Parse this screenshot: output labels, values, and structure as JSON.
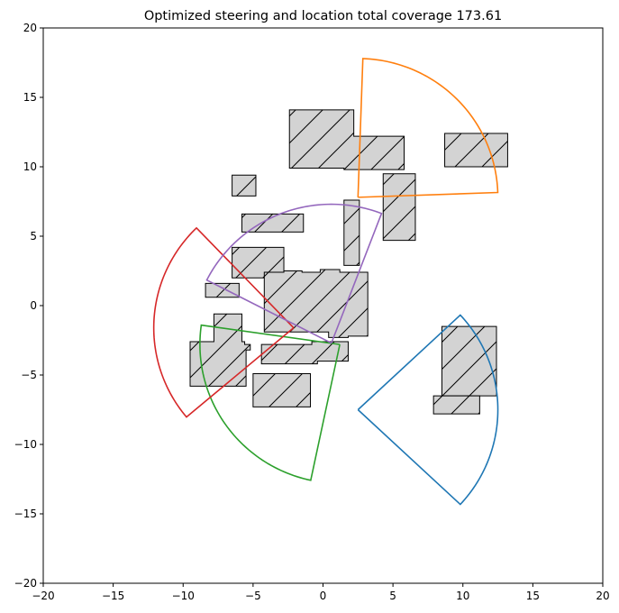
{
  "chart_data": {
    "type": "scatter",
    "title": "Optimized steering and location total coverage 173.61",
    "xlabel": "",
    "ylabel": "",
    "xlim": [
      -20,
      20
    ],
    "ylim": [
      -20,
      20
    ],
    "xticks": [
      -20,
      -15,
      -10,
      -5,
      0,
      5,
      10,
      15,
      20
    ],
    "yticks": [
      -20,
      -15,
      -10,
      -5,
      0,
      5,
      10,
      15,
      20
    ],
    "xtick_labels": [
      "−20",
      "−15",
      "−10",
      "−5",
      "0",
      "5",
      "10",
      "15",
      "20"
    ],
    "ytick_labels": [
      "−20",
      "−15",
      "−10",
      "−5",
      "0",
      "5",
      "10",
      "15",
      "20"
    ],
    "grid": false,
    "legend": "none",
    "obstacles": {
      "fill": "#d3d3d3",
      "edge": "#000000",
      "hatch": "/",
      "polygons": [
        [
          [
            -2.4,
            9.9
          ],
          [
            -2.4,
            14.1
          ],
          [
            2.2,
            14.1
          ],
          [
            2.2,
            12.2
          ],
          [
            5.8,
            12.2
          ],
          [
            5.8,
            9.8
          ],
          [
            1.5,
            9.8
          ],
          [
            1.5,
            9.9
          ]
        ],
        [
          [
            8.7,
            10.0
          ],
          [
            13.2,
            10.0
          ],
          [
            13.2,
            12.4
          ],
          [
            8.7,
            12.4
          ]
        ],
        [
          [
            -6.5,
            7.9
          ],
          [
            -4.8,
            7.9
          ],
          [
            -4.8,
            9.4
          ],
          [
            -6.5,
            9.4
          ]
        ],
        [
          [
            -5.8,
            5.3
          ],
          [
            -1.4,
            5.3
          ],
          [
            -1.4,
            6.6
          ],
          [
            -5.8,
            6.6
          ]
        ],
        [
          [
            1.5,
            2.9
          ],
          [
            2.6,
            2.9
          ],
          [
            2.6,
            7.6
          ],
          [
            1.5,
            7.6
          ]
        ],
        [
          [
            4.3,
            4.7
          ],
          [
            6.6,
            4.7
          ],
          [
            6.6,
            9.5
          ],
          [
            4.3,
            9.5
          ]
        ],
        [
          [
            -6.5,
            2.0
          ],
          [
            -2.8,
            2.0
          ],
          [
            -2.8,
            4.2
          ],
          [
            -6.5,
            4.2
          ]
        ],
        [
          [
            -8.4,
            0.6
          ],
          [
            -6.0,
            0.6
          ],
          [
            -6.0,
            1.6
          ],
          [
            -8.4,
            1.6
          ]
        ],
        [
          [
            -4.2,
            -1.9
          ],
          [
            0.4,
            -1.9
          ],
          [
            0.4,
            -2.3
          ],
          [
            1.8,
            -2.3
          ],
          [
            1.8,
            -2.2
          ],
          [
            3.2,
            -2.2
          ],
          [
            3.2,
            2.4
          ],
          [
            1.2,
            2.4
          ],
          [
            1.2,
            2.6
          ],
          [
            -0.2,
            2.6
          ],
          [
            -0.2,
            2.4
          ],
          [
            -1.5,
            2.4
          ],
          [
            -1.5,
            2.5
          ],
          [
            -2.8,
            2.5
          ],
          [
            -2.8,
            2.4
          ],
          [
            -4.2,
            2.4
          ]
        ],
        [
          [
            -9.5,
            -5.8
          ],
          [
            -5.5,
            -5.8
          ],
          [
            -5.5,
            -3.2
          ],
          [
            -5.2,
            -3.2
          ],
          [
            -5.2,
            -2.8
          ],
          [
            -5.6,
            -2.8
          ],
          [
            -5.6,
            -2.6
          ],
          [
            -5.8,
            -2.6
          ],
          [
            -5.8,
            -0.6
          ],
          [
            -7.8,
            -0.6
          ],
          [
            -7.8,
            -2.6
          ],
          [
            -9.5,
            -2.6
          ]
        ],
        [
          [
            -4.4,
            -4.2
          ],
          [
            -0.4,
            -4.2
          ],
          [
            -0.4,
            -4.0
          ],
          [
            1.8,
            -4.0
          ],
          [
            1.8,
            -2.6
          ],
          [
            -0.8,
            -2.6
          ],
          [
            -0.8,
            -2.8
          ],
          [
            -4.4,
            -2.8
          ]
        ],
        [
          [
            -5.0,
            -7.3
          ],
          [
            -0.9,
            -7.3
          ],
          [
            -0.9,
            -4.9
          ],
          [
            -5.0,
            -4.9
          ]
        ],
        [
          [
            8.5,
            -6.5
          ],
          [
            12.4,
            -6.5
          ],
          [
            12.4,
            -1.5
          ],
          [
            8.5,
            -1.5
          ]
        ],
        [
          [
            7.9,
            -7.8
          ],
          [
            11.2,
            -7.8
          ],
          [
            11.2,
            -6.5
          ],
          [
            7.9,
            -6.5
          ]
        ]
      ]
    },
    "series": [
      {
        "color": "#1f77b4",
        "center": [
          2.5,
          -7.5
        ],
        "radius": 10.0,
        "direction_deg": 0,
        "half_angle_deg": 43
      },
      {
        "color": "#ff7f0e",
        "center": [
          2.5,
          7.8
        ],
        "radius": 10.0,
        "direction_deg": 45,
        "half_angle_deg": 43
      },
      {
        "color": "#2ca02c",
        "center": [
          1.2,
          -2.8
        ],
        "radius": 10.0,
        "direction_deg": 215,
        "half_angle_deg": 43
      },
      {
        "color": "#d62728",
        "center": [
          -2.1,
          -1.6
        ],
        "radius": 10.0,
        "direction_deg": 177,
        "half_angle_deg": 43
      },
      {
        "color": "#9467bd",
        "center": [
          0.6,
          -2.7
        ],
        "radius": 10.0,
        "direction_deg": 111,
        "half_angle_deg": 42
      }
    ]
  }
}
